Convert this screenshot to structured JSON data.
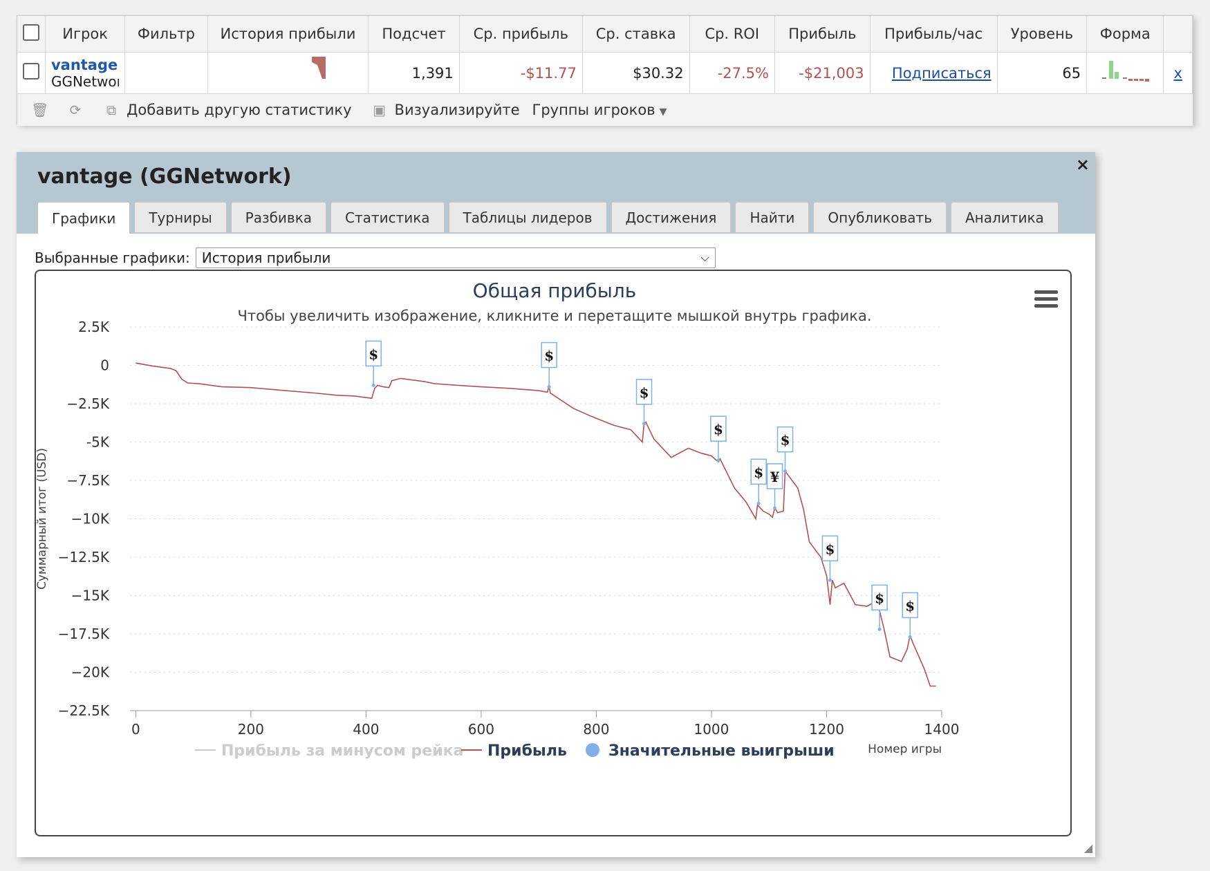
{
  "stats": {
    "columns": [
      "",
      "Игрок",
      "Фильтр",
      "История прибыли",
      "Подсчет",
      "Ср. прибыль",
      "Ср. ставка",
      "Ср. ROI",
      "Прибыль",
      "Прибыль/час",
      "Уровень",
      "Форма",
      ""
    ],
    "row": {
      "player": "vantage",
      "network": "GGNetwork",
      "filter": "",
      "count": "1,391",
      "avg_profit": "-$11.77",
      "avg_stake": "$30.32",
      "avg_roi": "-27.5%",
      "profit": "-$21,003",
      "profit_per_hour": "Подписаться",
      "level": "65",
      "remove": "x"
    },
    "toolbar": {
      "add_stats": "Добавить другую статистику",
      "visualize": "Визуализируйте",
      "player_groups": "Группы игроков"
    }
  },
  "dialog": {
    "title": "vantage (GGNetwork)",
    "close": "×",
    "tabs": [
      "Графики",
      "Турниры",
      "Разбивка",
      "Статистика",
      "Таблицы лидеров",
      "Достижения",
      "Найти",
      "Опубликовать",
      "Аналитика"
    ],
    "active_tab": 0,
    "chart_select_label": "Выбранные графики:",
    "chart_select_value": "История прибыли"
  },
  "colors": {
    "profit_line": "#b0524f",
    "big_win": "#7fb0e8",
    "accent": "#1e5aa8"
  },
  "chart_data": {
    "type": "line",
    "title": "Общая прибыль",
    "subtitle": "Чтобы увеличить изображение, кликните и перетащите мышкой внутрь графика.",
    "ylabel": "Суммарный итог (USD)",
    "xlabel": "Номер игры",
    "xlim": [
      -10,
      1400
    ],
    "ylim": [
      -22500,
      2500
    ],
    "xticks": [
      0,
      200,
      400,
      600,
      800,
      1000,
      1200,
      1400
    ],
    "yticks": [
      2500,
      0,
      -2500,
      -5000,
      -7500,
      -10000,
      -12500,
      -15000,
      -17500,
      -20000,
      -22500
    ],
    "ytick_labels": [
      "2.5K",
      "0",
      "−2.5K",
      "-5K",
      "−7.5K",
      "−10K",
      "−12.5K",
      "−15K",
      "−17.5K",
      "−20K",
      "−22.5K"
    ],
    "xtick_labels": [
      "0",
      "200",
      "400",
      "600",
      "800",
      "1000",
      "1200",
      "1400"
    ],
    "grid": true,
    "legend": [
      {
        "name": "Прибыль за минусом рейка",
        "enabled": false
      },
      {
        "name": "Прибыль",
        "enabled": true
      },
      {
        "name": "Значительные выигрыши",
        "enabled": true
      }
    ],
    "series": [
      {
        "name": "Прибыль",
        "x": [
          0,
          30,
          60,
          70,
          80,
          90,
          110,
          150,
          200,
          260,
          310,
          350,
          380,
          410,
          415,
          420,
          430,
          440,
          445,
          460,
          500,
          520,
          560,
          600,
          650,
          700,
          715,
          718,
          720,
          740,
          760,
          790,
          800,
          830,
          860,
          880,
          883,
          886,
          900,
          930,
          960,
          980,
          1000,
          1012,
          1015,
          1040,
          1060,
          1077,
          1080,
          1090,
          1100,
          1106,
          1110,
          1115,
          1125,
          1128,
          1132,
          1150,
          1160,
          1170,
          1190,
          1200,
          1206,
          1210,
          1215,
          1230,
          1250,
          1270,
          1285,
          1292,
          1300,
          1310,
          1330,
          1340,
          1345,
          1350,
          1370,
          1380,
          1390
        ],
        "y": [
          150,
          -50,
          -200,
          -350,
          -900,
          -1150,
          -1200,
          -1400,
          -1450,
          -1650,
          -1800,
          -1950,
          -2000,
          -2150,
          -1500,
          -1300,
          -1400,
          -1450,
          -1000,
          -850,
          -1050,
          -1200,
          -1300,
          -1400,
          -1500,
          -1650,
          -1750,
          -1300,
          -1800,
          -2300,
          -2800,
          -3300,
          -3450,
          -3900,
          -4200,
          -5000,
          -3800,
          -3700,
          -4800,
          -6000,
          -5400,
          -5700,
          -5900,
          -6300,
          -6100,
          -8000,
          -8900,
          -10000,
          -9100,
          -9500,
          -9700,
          -9900,
          -9300,
          -9600,
          -9500,
          -6900,
          -7100,
          -8000,
          -9400,
          -11500,
          -12500,
          -13700,
          -15600,
          -14000,
          -14500,
          -14200,
          -15600,
          -15700,
          -15400,
          -16000,
          -17200,
          -19000,
          -19300,
          -18500,
          -17600,
          -18100,
          -19800,
          -20900,
          -20900
        ]
      }
    ],
    "big_wins": [
      {
        "x": 413,
        "y": -1300,
        "symbol": "$"
      },
      {
        "x": 718,
        "y": -1400,
        "symbol": "$"
      },
      {
        "x": 883,
        "y": -3800,
        "symbol": "$"
      },
      {
        "x": 1012,
        "y": -6200,
        "symbol": "$"
      },
      {
        "x": 1082,
        "y": -9000,
        "symbol": "$"
      },
      {
        "x": 1110,
        "y": -9300,
        "symbol": "¥"
      },
      {
        "x": 1128,
        "y": -6900,
        "symbol": "$"
      },
      {
        "x": 1206,
        "y": -14000,
        "symbol": "$"
      },
      {
        "x": 1292,
        "y": -17200,
        "symbol": "$"
      },
      {
        "x": 1345,
        "y": -17700,
        "symbol": "$"
      }
    ]
  }
}
